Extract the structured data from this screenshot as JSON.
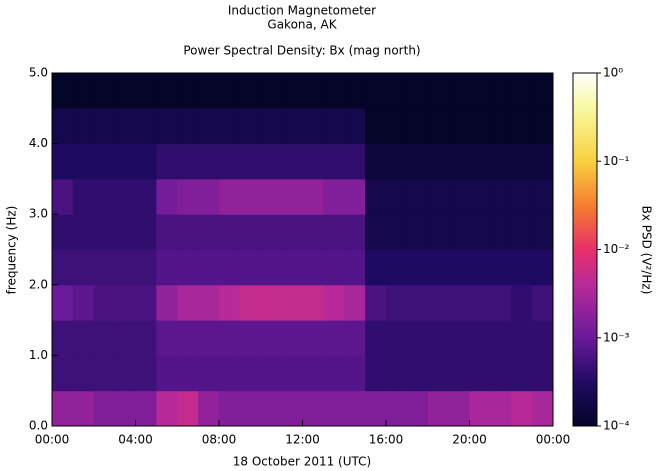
{
  "chart_data": {
    "type": "heatmap",
    "title_lines": [
      "Induction Magnetometer",
      "Gakona, AK"
    ],
    "title": "Power Spectral Density: Bx (mag north)",
    "xlabel": "18 October 2011 (UTC)",
    "ylabel": "frequency (Hz)",
    "colorbar_label": "Bx PSD (V²/Hz)",
    "color_scale": "log",
    "x": [
      0,
      1,
      2,
      3,
      4,
      5,
      6,
      7,
      8,
      9,
      10,
      11,
      12,
      13,
      14,
      15,
      16,
      17,
      18,
      19,
      20,
      21,
      22,
      23,
      24
    ],
    "y": [
      0,
      0.5,
      1,
      1.5,
      2,
      2.5,
      3,
      3.5,
      4,
      4.5,
      5
    ],
    "xlim": [
      0,
      24
    ],
    "ylim": [
      0,
      5
    ],
    "clim": [
      0.0001,
      1
    ],
    "xticks": [
      {
        "value": 0,
        "label": "00:00"
      },
      {
        "value": 4,
        "label": "04:00"
      },
      {
        "value": 8,
        "label": "08:00"
      },
      {
        "value": 12,
        "label": "12:00"
      },
      {
        "value": 16,
        "label": "16:00"
      },
      {
        "value": 20,
        "label": "20:00"
      },
      {
        "value": 24,
        "label": "00:00"
      }
    ],
    "yticks": [
      {
        "value": 0,
        "label": "0.0"
      },
      {
        "value": 1,
        "label": "1.0"
      },
      {
        "value": 2,
        "label": "2.0"
      },
      {
        "value": 3,
        "label": "3.0"
      },
      {
        "value": 4,
        "label": "4.0"
      },
      {
        "value": 5,
        "label": "5.0"
      }
    ],
    "cticks": [
      {
        "value": 0.0001,
        "label": "10⁻⁴"
      },
      {
        "value": 0.001,
        "label": "10⁻³"
      },
      {
        "value": 0.01,
        "label": "10⁻²"
      },
      {
        "value": 0.1,
        "label": "10⁻¹"
      },
      {
        "value": 1,
        "label": "10⁰"
      }
    ],
    "z": [
      [
        0.002,
        0.002,
        0.0015,
        0.0015,
        0.0015,
        0.004,
        0.005,
        0.002,
        0.0015,
        0.0015,
        0.0015,
        0.0015,
        0.0015,
        0.0015,
        0.0015,
        0.0015,
        0.0015,
        0.0015,
        0.002,
        0.002,
        0.003,
        0.003,
        0.004,
        0.003
      ],
      [
        0.0005,
        0.0005,
        0.0005,
        0.0005,
        0.0005,
        0.0007,
        0.0007,
        0.0007,
        0.0007,
        0.0007,
        0.0007,
        0.0007,
        0.0007,
        0.0007,
        0.0007,
        0.0004,
        0.0004,
        0.0004,
        0.0004,
        0.0004,
        0.0004,
        0.0004,
        0.0004,
        0.0004
      ],
      [
        0.0005,
        0.0005,
        0.0005,
        0.0005,
        0.0005,
        0.0008,
        0.0008,
        0.0008,
        0.0008,
        0.0008,
        0.0008,
        0.0008,
        0.0008,
        0.0008,
        0.0008,
        0.0004,
        0.0004,
        0.0004,
        0.0004,
        0.0004,
        0.0004,
        0.0004,
        0.0004,
        0.0004
      ],
      [
        0.001,
        0.0008,
        0.0006,
        0.0006,
        0.0006,
        0.002,
        0.003,
        0.003,
        0.004,
        0.005,
        0.005,
        0.005,
        0.005,
        0.004,
        0.003,
        0.0006,
        0.0005,
        0.0005,
        0.0005,
        0.0005,
        0.0005,
        0.0005,
        0.0004,
        0.0005
      ],
      [
        0.0005,
        0.0005,
        0.0005,
        0.0005,
        0.0005,
        0.0007,
        0.0007,
        0.0007,
        0.0007,
        0.0007,
        0.0007,
        0.0007,
        0.0007,
        0.0007,
        0.0007,
        0.0003,
        0.0003,
        0.0003,
        0.0003,
        0.0003,
        0.0003,
        0.0003,
        0.0003,
        0.0003
      ],
      [
        0.0004,
        0.0004,
        0.0004,
        0.0004,
        0.0004,
        0.0006,
        0.0006,
        0.0006,
        0.0006,
        0.0006,
        0.0006,
        0.0006,
        0.0006,
        0.0006,
        0.0006,
        0.0002,
        0.0002,
        0.0002,
        0.0002,
        0.0002,
        0.0002,
        0.0002,
        0.0002,
        0.0002
      ],
      [
        0.0006,
        0.0004,
        0.0004,
        0.0004,
        0.0004,
        0.0012,
        0.0015,
        0.0015,
        0.002,
        0.002,
        0.002,
        0.002,
        0.002,
        0.0015,
        0.0015,
        0.0002,
        0.0002,
        0.0002,
        0.0002,
        0.0002,
        0.0002,
        0.0002,
        0.0002,
        0.0002
      ],
      [
        0.0003,
        0.0003,
        0.0003,
        0.0003,
        0.0003,
        0.0004,
        0.0004,
        0.0004,
        0.0004,
        0.0004,
        0.0004,
        0.0004,
        0.0004,
        0.0004,
        0.0004,
        0.00015,
        0.00015,
        0.00015,
        0.00015,
        0.00015,
        0.00015,
        0.00015,
        0.00015,
        0.00015
      ],
      [
        0.0002,
        0.0002,
        0.0002,
        0.0002,
        0.0002,
        0.0002,
        0.0002,
        0.0002,
        0.0002,
        0.0002,
        0.0002,
        0.0002,
        0.0002,
        0.0002,
        0.0002,
        0.0001,
        0.0001,
        0.0001,
        0.0001,
        0.0001,
        0.0001,
        0.0001,
        0.0001,
        0.0001
      ],
      [
        0.0001,
        0.0001,
        0.0001,
        0.0001,
        0.0001,
        0.0001,
        0.0001,
        0.0001,
        0.0001,
        0.0001,
        0.0001,
        0.0001,
        0.0001,
        0.0001,
        0.0001,
        0.0001,
        0.0001,
        0.0001,
        0.0001,
        0.0001,
        0.0001,
        0.0001,
        0.0001,
        0.0001
      ]
    ]
  }
}
